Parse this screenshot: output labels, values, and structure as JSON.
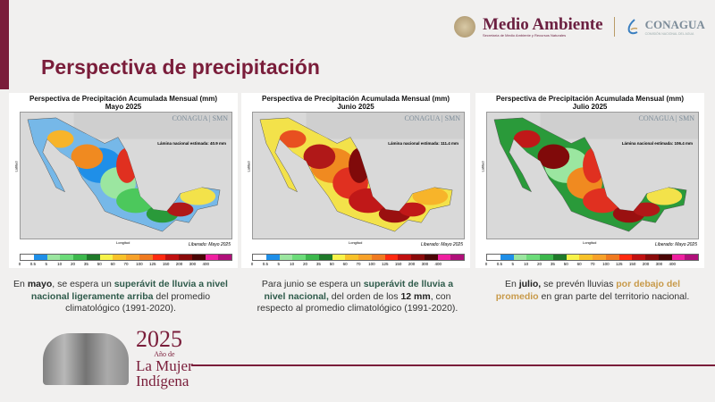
{
  "header": {
    "brand": "Medio Ambiente",
    "brand_sub": "Secretaría de Medio Ambiente y Recursos Naturales",
    "agency": "CONAGUA",
    "agency_sub": "COMISIÓN NACIONAL DEL AGUA"
  },
  "page_title": "Perspectiva de precipitación",
  "maps": [
    {
      "title": "Perspectiva de Precipitación Acumulada Mensual (mm)",
      "month": "Mayo 2025",
      "lamina": "Lámina nacional estimada: 40.9 mm",
      "released": "Liberado: Mayo 2025",
      "palette": [
        "#76b8e8",
        "#1f8fe8",
        "#9be6a0",
        "#4cc85c",
        "#2a9a3a",
        "#f3e24a",
        "#f7b42a",
        "#f08a20",
        "#e03020",
        "#b01818"
      ]
    },
    {
      "title": "Perspectiva de Precipitación Acumulada Mensual (mm)",
      "month": "Junio 2025",
      "lamina": "Lámina nacional estimada: 111.4 mm",
      "released": "Liberado: Mayo 2025",
      "palette": [
        "#f3e24a",
        "#f08a20",
        "#e03020",
        "#c01818",
        "#9a1010",
        "#f7b42a",
        "#e85020",
        "#b01818",
        "#800a0a",
        "#c01818"
      ]
    },
    {
      "title": "Perspectiva de Precipitación Acumulada Mensual (mm)",
      "month": "Julio 2025",
      "lamina": "Lámina nacional estimada: 106.4 mm",
      "released": "Liberado: Mayo 2025",
      "palette": [
        "#2a9a3a",
        "#9be6a0",
        "#f08a20",
        "#e03020",
        "#9a1010",
        "#f3e24a",
        "#c01818",
        "#800a0a",
        "#e03020",
        "#b01818"
      ]
    }
  ],
  "map_labels": {
    "ylabel": "Latitud",
    "xlabel": "Longitud",
    "logo_left": "CONAGUA",
    "logo_right": "SMN"
  },
  "colorbar": {
    "ticks": [
      "0",
      "0.5",
      "5",
      "10",
      "20",
      "35",
      "50",
      "60",
      "70",
      "100",
      "125",
      "150",
      "200",
      "300",
      "400"
    ],
    "colors": [
      "#ffffff",
      "#1f8fe8",
      "#9be6a0",
      "#6cdc7a",
      "#3cb84c",
      "#1f7a2a",
      "#f7f34a",
      "#f7c22a",
      "#f7a22a",
      "#f07a20",
      "#ff2a10",
      "#c01010",
      "#8a0a0a",
      "#4a0505",
      "#f020a0",
      "#b0107a"
    ]
  },
  "descriptions": [
    {
      "p1": "En ",
      "b1": "mayo",
      ",": "",
      "p2": ", se espera un ",
      "g1": "superávit  de lluvia a nivel nacional ligeramente arriba",
      "p3": " del promedio climatológico  (1991-2020)."
    },
    {
      "p1": "Para junio se espera un ",
      "g1": "superávit de lluvia a nivel nacional,",
      "p2": " del orden de los ",
      "b1": "12 mm",
      "p3": ", con respecto al promedio climatológico (1991-2020)."
    },
    {
      "p1": "En ",
      "b1": "julio,",
      "p2": " se prevén lluvias ",
      "o1": "por debajo del promedio",
      "p3": " en gran parte del territorio nacional."
    }
  ],
  "footer": {
    "year": "2025",
    "line1": "Año de",
    "line2": "La Mujer",
    "line3": "Indígena"
  }
}
